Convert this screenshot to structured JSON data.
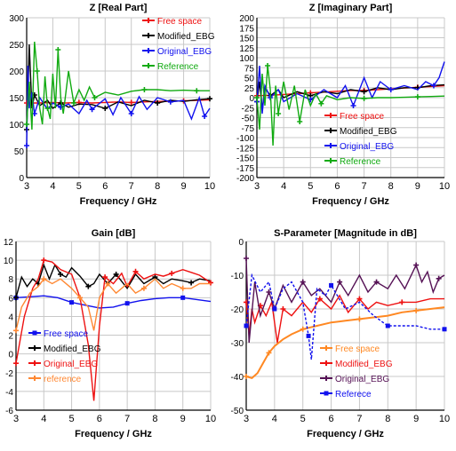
{
  "chart_data": [
    {
      "type": "line",
      "title": "Z [Real Part]",
      "xlabel": "Frequency / GHz",
      "ylabel": "",
      "xlim": [
        3,
        10
      ],
      "ylim": [
        0,
        300
      ],
      "xticks": [
        3,
        4,
        5,
        6,
        7,
        8,
        9,
        10
      ],
      "yticks": [
        0,
        50,
        100,
        150,
        200,
        250,
        300
      ],
      "grid": true,
      "legend_position": "top-right",
      "series": [
        {
          "name": "Free space",
          "color": "#ee1111",
          "marker": "+",
          "x": [
            3,
            3.5,
            4,
            4.5,
            5,
            5.5,
            6,
            6.5,
            7,
            7.5,
            8,
            8.5,
            9,
            9.5,
            10
          ],
          "y": [
            140,
            140,
            141,
            140,
            141,
            140,
            141,
            142,
            141,
            142,
            143,
            143,
            144,
            145,
            146
          ]
        },
        {
          "name": "Modified_EBG",
          "color": "#000000",
          "marker": "+",
          "x": [
            3,
            3.05,
            3.1,
            3.2,
            3.3,
            3.5,
            3.8,
            4,
            4.3,
            4.6,
            5,
            5.5,
            6,
            6.5,
            7,
            7.5,
            8,
            8.5,
            9,
            9.5,
            10
          ],
          "y": [
            90,
            160,
            250,
            130,
            155,
            135,
            145,
            130,
            140,
            132,
            138,
            137,
            130,
            142,
            135,
            145,
            140,
            145,
            143,
            146,
            148
          ]
        },
        {
          "name": "Original_EBG",
          "color": "#1111ee",
          "marker": "+",
          "x": [
            3,
            3.05,
            3.1,
            3.2,
            3.3,
            3.5,
            3.8,
            4,
            4.3,
            4.6,
            5,
            5.3,
            5.5,
            6,
            6.3,
            6.6,
            7,
            7.3,
            7.6,
            8,
            8.5,
            9,
            9.3,
            9.6,
            9.8,
            10
          ],
          "y": [
            60,
            210,
            130,
            160,
            120,
            150,
            128,
            140,
            132,
            138,
            120,
            145,
            128,
            148,
            118,
            150,
            120,
            152,
            128,
            150,
            142,
            145,
            110,
            150,
            115,
            130
          ]
        },
        {
          "name": "Reference",
          "color": "#11aa11",
          "marker": "+",
          "x": [
            3,
            3.1,
            3.2,
            3.3,
            3.4,
            3.5,
            3.6,
            3.7,
            3.8,
            3.9,
            4,
            4.1,
            4.2,
            4.3,
            4.4,
            4.6,
            4.8,
            5,
            5.2,
            5.4,
            5.6,
            6,
            6.5,
            7,
            7.5,
            8,
            8.5,
            9,
            9.5,
            10
          ],
          "y": [
            100,
            180,
            90,
            255,
            200,
            130,
            100,
            190,
            130,
            110,
            195,
            130,
            240,
            150,
            120,
            200,
            140,
            165,
            145,
            170,
            150,
            160,
            155,
            162,
            165,
            165,
            163,
            164,
            163,
            163
          ]
        }
      ]
    },
    {
      "type": "line",
      "title": "Z [Imaginary Part]",
      "xlabel": "Frequency / GHz",
      "ylabel": "",
      "xlim": [
        3,
        10
      ],
      "ylim": [
        -200,
        200
      ],
      "xticks": [
        3,
        4,
        5,
        6,
        7,
        8,
        9,
        10
      ],
      "yticks": [
        -200,
        -175,
        -150,
        -125,
        -100,
        -75,
        -50,
        -25,
        0,
        25,
        50,
        75,
        100,
        125,
        150,
        175,
        200
      ],
      "grid": true,
      "legend_position": "bottom-right",
      "series": [
        {
          "name": "Free space",
          "color": "#ee1111",
          "marker": "+",
          "x": [
            3,
            3.5,
            4,
            4.5,
            5,
            5.5,
            6,
            6.5,
            7,
            7.5,
            8,
            8.5,
            9,
            9.5,
            10
          ],
          "y": [
            5,
            6,
            8,
            10,
            12,
            14,
            16,
            18,
            18,
            20,
            22,
            24,
            26,
            28,
            30
          ]
        },
        {
          "name": "Modified_EBG",
          "color": "#000000",
          "marker": "+",
          "x": [
            3,
            3.1,
            3.2,
            3.3,
            3.5,
            3.8,
            4,
            4.5,
            5,
            5.5,
            6,
            6.5,
            7,
            7.5,
            8,
            8.5,
            9,
            9.5,
            10
          ],
          "y": [
            -10,
            40,
            -30,
            25,
            5,
            20,
            0,
            15,
            5,
            15,
            10,
            20,
            15,
            25,
            20,
            25,
            25,
            30,
            32
          ]
        },
        {
          "name": "Original_EBG",
          "color": "#1111ee",
          "marker": "+",
          "x": [
            3,
            3.1,
            3.2,
            3.3,
            3.5,
            3.8,
            4,
            4.5,
            5,
            5.5,
            6,
            6.3,
            6.6,
            7,
            7.3,
            7.6,
            8,
            8.5,
            9,
            9.3,
            9.6,
            9.8,
            10
          ],
          "y": [
            -10,
            80,
            -40,
            30,
            0,
            20,
            -10,
            10,
            -5,
            20,
            0,
            30,
            -20,
            50,
            0,
            40,
            20,
            30,
            20,
            40,
            30,
            50,
            90
          ]
        },
        {
          "name": "Reference",
          "color": "#11aa11",
          "marker": "+",
          "x": [
            3,
            3.1,
            3.2,
            3.3,
            3.4,
            3.5,
            3.6,
            3.7,
            3.8,
            4,
            4.2,
            4.4,
            4.6,
            4.8,
            5,
            5.2,
            5.4,
            5.6,
            6,
            6.5,
            7,
            7.5,
            8,
            8.5,
            9,
            9.5,
            10
          ],
          "y": [
            0,
            -80,
            60,
            -20,
            80,
            20,
            -120,
            30,
            -40,
            40,
            -30,
            30,
            -60,
            20,
            -20,
            10,
            -15,
            5,
            -5,
            0,
            -2,
            0,
            0,
            1,
            2,
            3,
            4
          ]
        }
      ]
    },
    {
      "type": "line",
      "title": "Gain   [dB]",
      "xlabel": "Frequency / GHz",
      "ylabel": "",
      "xlim": [
        3,
        10
      ],
      "ylim": [
        -6,
        12
      ],
      "xticks": [
        3,
        4,
        5,
        6,
        7,
        8,
        9,
        10
      ],
      "yticks": [
        -6,
        -4,
        -2,
        0,
        2,
        4,
        6,
        8,
        10,
        12
      ],
      "grid": true,
      "legend_position": "left",
      "series": [
        {
          "name": "Free space",
          "color": "#1111ee",
          "marker": "square",
          "x": [
            3,
            3.5,
            4,
            4.5,
            5,
            5.5,
            6,
            6.5,
            7,
            7.5,
            8,
            8.5,
            9,
            9.5,
            10
          ],
          "y": [
            6.0,
            6.1,
            6.2,
            6.0,
            5.5,
            5.2,
            4.9,
            5.0,
            5.4,
            5.7,
            5.9,
            6.0,
            6.0,
            5.8,
            5.6
          ]
        },
        {
          "name": "Modified_EBG",
          "color": "#000000",
          "marker": "+",
          "x": [
            3,
            3.2,
            3.4,
            3.6,
            3.8,
            4,
            4.2,
            4.4,
            4.6,
            4.8,
            5,
            5.3,
            5.6,
            5.8,
            6,
            6.3,
            6.6,
            7,
            7.3,
            7.6,
            8,
            8.3,
            8.6,
            9,
            9.3,
            9.6,
            10
          ],
          "y": [
            6,
            8.2,
            7.2,
            8.0,
            7.5,
            9.5,
            8.0,
            9.5,
            8.5,
            8.2,
            9.2,
            8.3,
            7.2,
            7.5,
            8.5,
            7.5,
            8.5,
            7.0,
            8.5,
            7.5,
            8.2,
            7.5,
            8.0,
            7.8,
            7.6,
            8.0,
            7.8
          ]
        },
        {
          "name": "Original_EBG",
          "color": "#ee1111",
          "marker": "+",
          "x": [
            3,
            3.3,
            3.6,
            3.8,
            4,
            4.3,
            4.6,
            5,
            5.3,
            5.6,
            5.8,
            6,
            6.2,
            6.5,
            6.8,
            7,
            7.3,
            7.6,
            8,
            8.3,
            8.6,
            9,
            9.3,
            9.6,
            10
          ],
          "y": [
            -1,
            4,
            7,
            8,
            10,
            9.8,
            9.0,
            8.5,
            6.0,
            1.0,
            -5.0,
            3.0,
            8.2,
            7.5,
            8.6,
            7.2,
            8.8,
            8.0,
            8.5,
            8.3,
            8.6,
            9.0,
            8.7,
            8.4,
            7.6
          ]
        },
        {
          "name": "reference",
          "color": "#ff8833",
          "marker": "+",
          "x": [
            3,
            3.2,
            3.5,
            3.8,
            4,
            4.3,
            4.6,
            5,
            5.3,
            5.6,
            5.8,
            6,
            6.3,
            6.6,
            7,
            7.3,
            7.6,
            8,
            8.3,
            8.6,
            9,
            9.3,
            9.6,
            10
          ],
          "y": [
            2.5,
            5.0,
            6.5,
            7.2,
            8.0,
            7.5,
            8.0,
            7.0,
            6.0,
            5.0,
            2.5,
            6.0,
            7.5,
            6.5,
            7.5,
            6.5,
            7.0,
            8.0,
            7.0,
            7.5,
            7.0,
            7.0,
            7.5,
            7.5
          ]
        }
      ]
    },
    {
      "type": "line",
      "title": "S-Parameter [Magnitude in dB]",
      "xlabel": "Frequency / GHz",
      "ylabel": "",
      "xlim": [
        3,
        10
      ],
      "ylim": [
        -50,
        0
      ],
      "xticks": [
        3,
        4,
        5,
        6,
        7,
        8,
        9,
        10
      ],
      "yticks": [
        -50,
        -40,
        -30,
        -20,
        -10,
        0
      ],
      "grid": true,
      "legend_position": "bottom-center",
      "series": [
        {
          "name": "Free space",
          "color": "#ff8822",
          "marker": "+",
          "x": [
            3,
            3.2,
            3.4,
            3.6,
            3.8,
            4,
            4.3,
            4.6,
            5,
            5.5,
            6,
            6.5,
            7,
            7.5,
            8,
            8.5,
            9,
            9.5,
            10
          ],
          "y": [
            -40,
            -40.5,
            -39,
            -36,
            -33,
            -31,
            -29,
            -27.5,
            -26,
            -25,
            -24,
            -23.5,
            -23,
            -22.5,
            -22,
            -21,
            -20.5,
            -20,
            -19.5
          ]
        },
        {
          "name": "Modified_EBG",
          "color": "#ee1111",
          "marker": "+",
          "x": [
            3,
            3.1,
            3.2,
            3.3,
            3.5,
            3.7,
            3.9,
            4.1,
            4.3,
            4.6,
            5,
            5.3,
            5.6,
            6,
            6.3,
            6.6,
            7,
            7.3,
            7.6,
            8,
            8.5,
            9,
            9.5,
            10
          ],
          "y": [
            -18,
            -28,
            -20,
            -24,
            -19,
            -22,
            -18,
            -30,
            -20,
            -22,
            -18,
            -21,
            -17,
            -20,
            -16,
            -21,
            -17,
            -20,
            -18,
            -19,
            -18,
            -18,
            -17,
            -17
          ]
        },
        {
          "name": "Original_EBG",
          "color": "#551155",
          "marker": "+",
          "x": [
            3,
            3.1,
            3.3,
            3.5,
            3.8,
            4,
            4.3,
            4.6,
            5,
            5.3,
            5.6,
            6,
            6.3,
            6.6,
            7,
            7.3,
            7.6,
            8,
            8.3,
            8.6,
            9,
            9.2,
            9.4,
            9.6,
            9.8,
            10
          ],
          "y": [
            -5,
            -30,
            -12,
            -22,
            -15,
            -20,
            -13,
            -18,
            -12,
            -16,
            -14,
            -18,
            -12,
            -16,
            -10,
            -15,
            -12,
            -14,
            -10,
            -14,
            -7,
            -12,
            -9,
            -15,
            -11,
            -10
          ]
        },
        {
          "name": "Referece",
          "color": "#1111ee",
          "marker": "square",
          "x": [
            3,
            3.2,
            3.5,
            3.8,
            4,
            4.3,
            4.6,
            5,
            5.2,
            5.3,
            5.5,
            5.8,
            6,
            6.5,
            7,
            7.5,
            8,
            8.5,
            9,
            9.5,
            10
          ],
          "y": [
            -25,
            -10,
            -15,
            -12,
            -20,
            -14,
            -12,
            -18,
            -28,
            -35,
            -14,
            -16,
            -13,
            -20,
            -18,
            -22,
            -25,
            -25,
            -25,
            -26,
            -26
          ]
        }
      ]
    }
  ]
}
